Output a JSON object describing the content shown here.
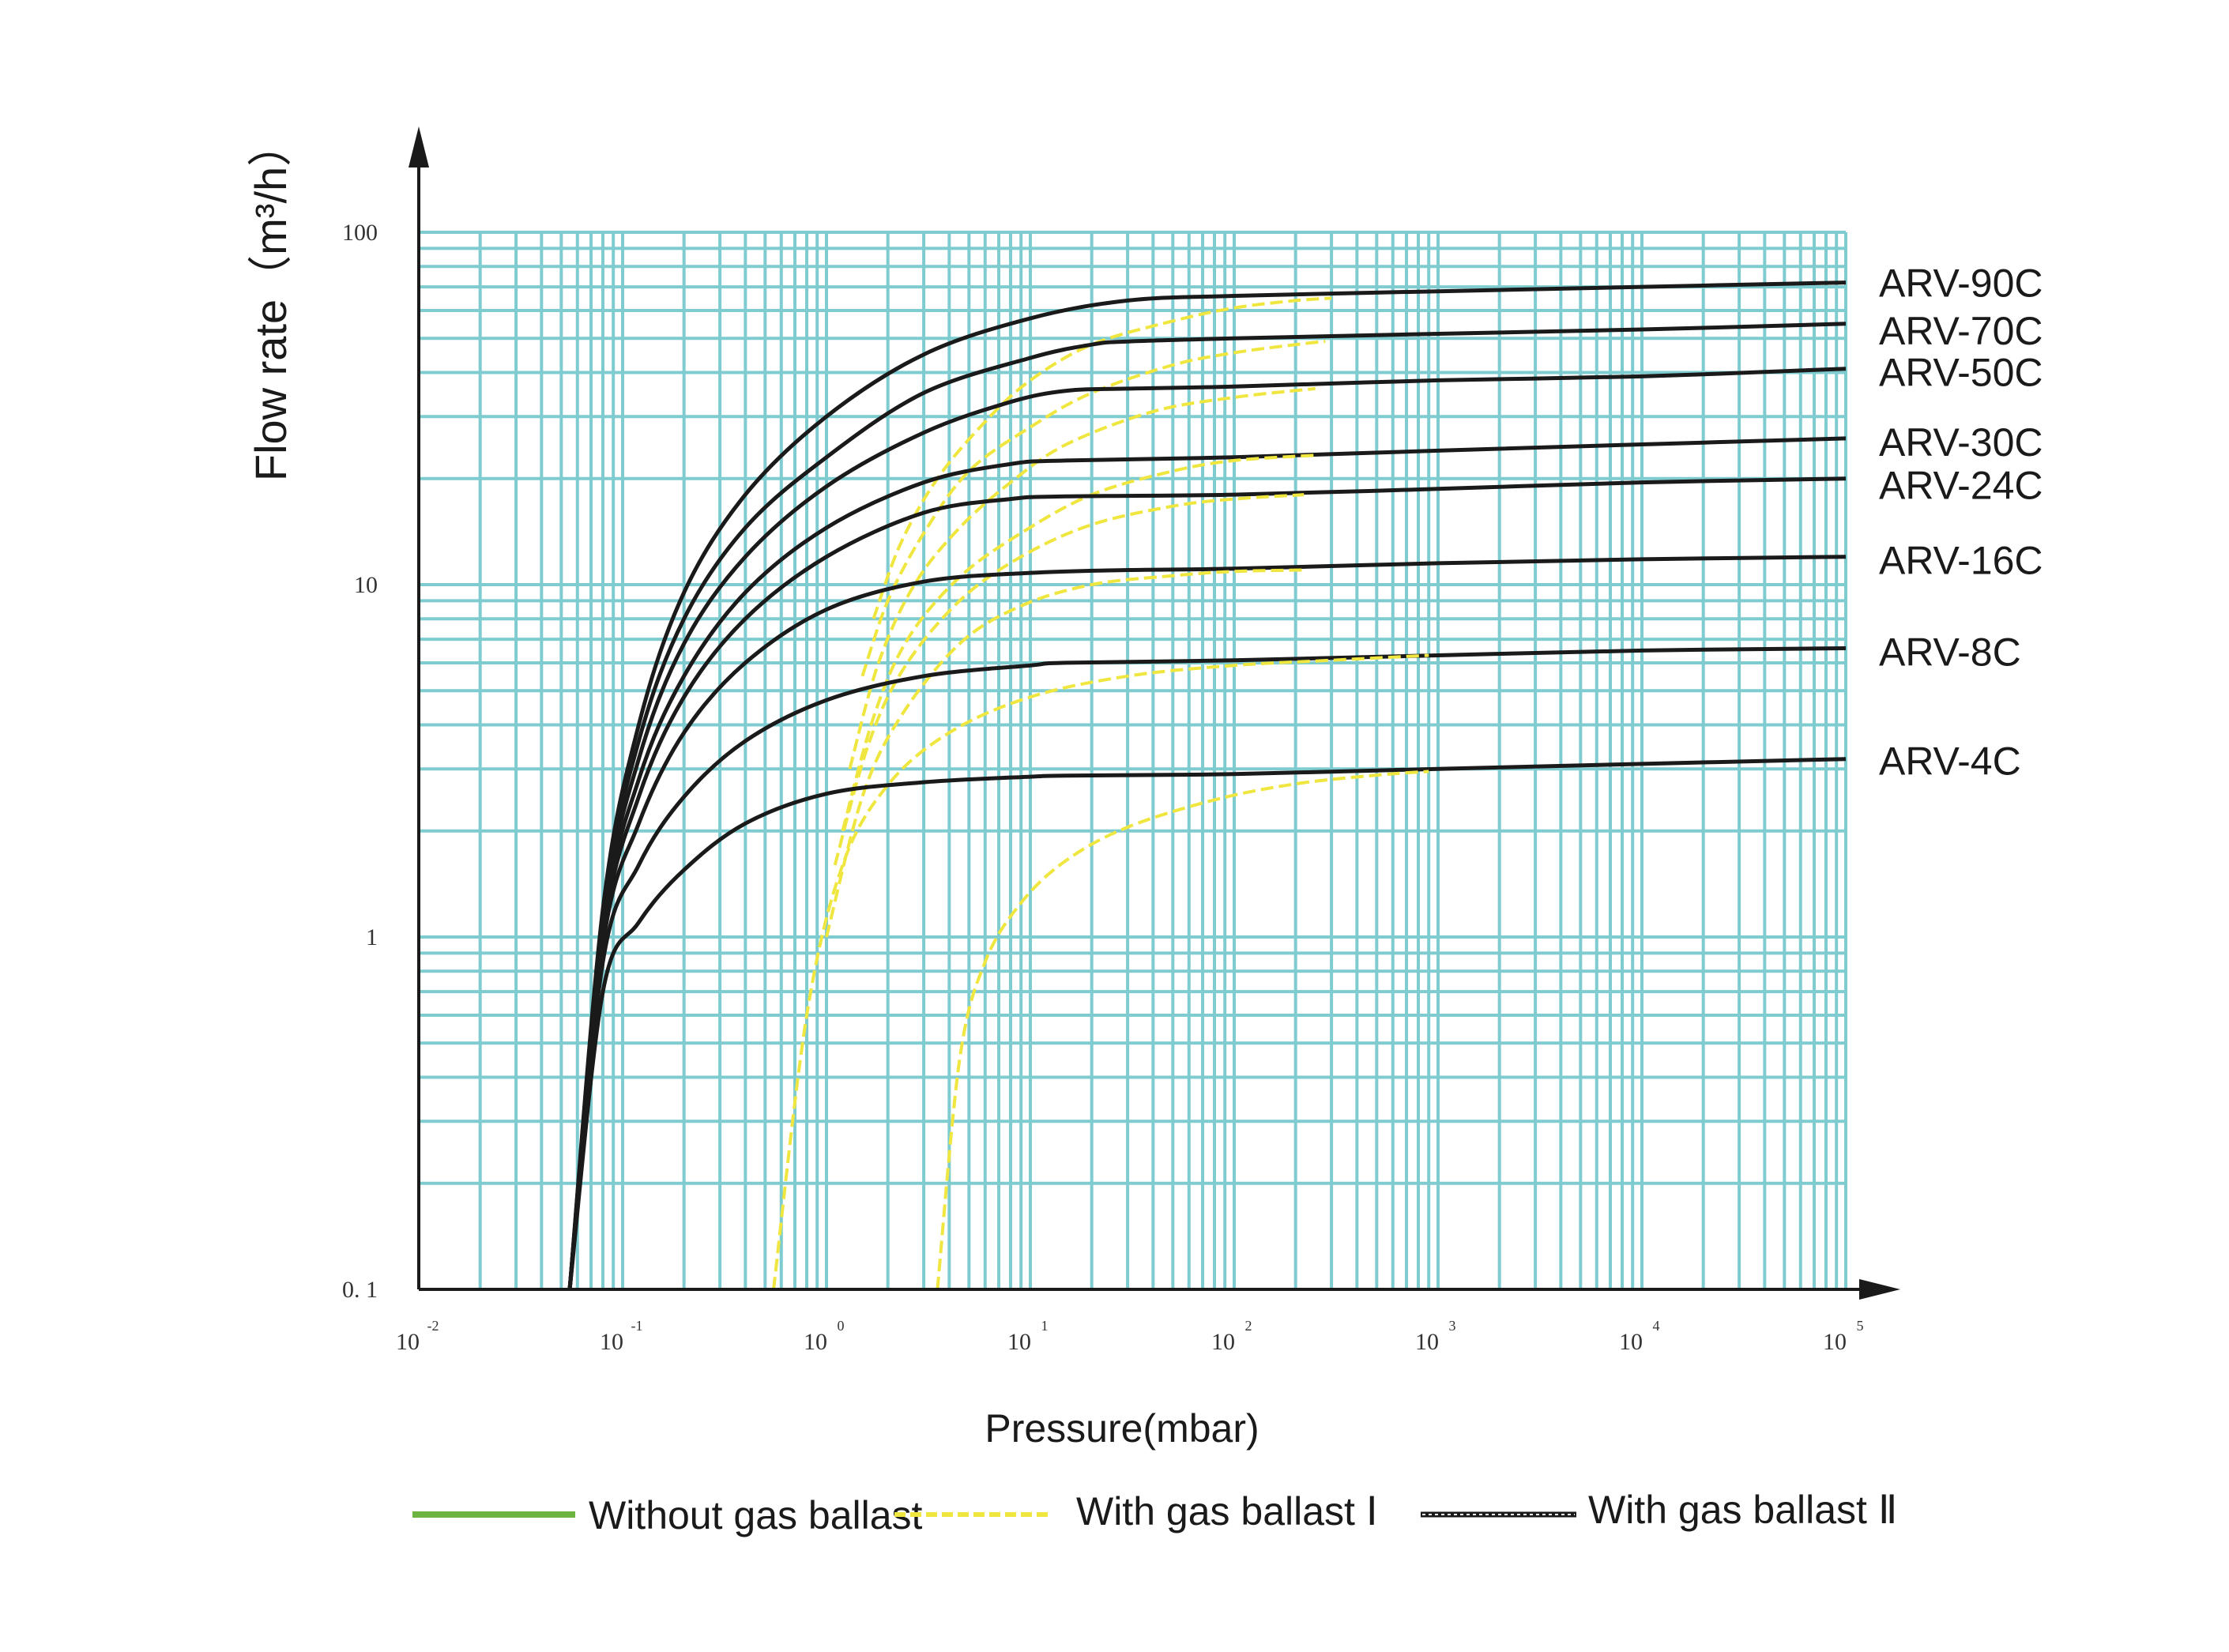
{
  "chart_data": {
    "type": "line",
    "x_scale": "log",
    "y_scale": "log",
    "xlim": [
      0.01,
      100000
    ],
    "ylim": [
      0.1,
      100
    ],
    "xlabel": "Pressure(mbar)",
    "ylabel": "Flow rate（m³/h）",
    "grid": true,
    "x_tick_labels": [
      {
        "base": "10",
        "exp": "-2",
        "value": 0.01
      },
      {
        "base": "10",
        "exp": "-1",
        "value": 0.1
      },
      {
        "base": "10",
        "exp": "0",
        "value": 1
      },
      {
        "base": "10",
        "exp": "1",
        "value": 10
      },
      {
        "base": "10",
        "exp": "2",
        "value": 100
      },
      {
        "base": "10",
        "exp": "3",
        "value": 1000
      },
      {
        "base": "10",
        "exp": "4",
        "value": 10000
      },
      {
        "base": "10",
        "exp": "5",
        "value": 100000
      }
    ],
    "y_tick_labels": [
      {
        "label": "0. 1",
        "value": 0.1
      },
      {
        "label": "1",
        "value": 1
      },
      {
        "label": "10",
        "value": 10
      },
      {
        "label": "100",
        "value": 100
      }
    ],
    "series": [
      {
        "name": "ARV-90C",
        "without_ballast": [
          [
            0.055,
            0.1
          ],
          [
            0.08,
            1.2
          ],
          [
            0.12,
            4
          ],
          [
            0.2,
            9.5
          ],
          [
            0.4,
            18
          ],
          [
            1,
            30
          ],
          [
            3,
            45
          ],
          [
            10,
            57
          ],
          [
            30,
            64
          ],
          [
            100,
            66
          ],
          [
            1000,
            68
          ],
          [
            10000,
            70
          ],
          [
            100000,
            72
          ]
        ],
        "with_ballast_I": [
          [
            1.7,
            8
          ],
          [
            2.3,
            13
          ],
          [
            3.5,
            20
          ],
          [
            6,
            29
          ],
          [
            10,
            38
          ],
          [
            20,
            48
          ],
          [
            50,
            56
          ],
          [
            100,
            61
          ],
          [
            200,
            64
          ],
          [
            300,
            65
          ]
        ]
      },
      {
        "name": "ARV-70C",
        "without_ballast": [
          [
            0.055,
            0.1
          ],
          [
            0.08,
            1.15
          ],
          [
            0.12,
            3.6
          ],
          [
            0.2,
            8
          ],
          [
            0.4,
            14.5
          ],
          [
            1,
            23
          ],
          [
            3,
            35
          ],
          [
            10,
            44
          ],
          [
            20,
            48
          ],
          [
            30,
            49
          ],
          [
            100,
            50
          ],
          [
            1000,
            51.5
          ],
          [
            10000,
            53
          ],
          [
            100000,
            55
          ]
        ],
        "with_ballast_I": [
          [
            1.5,
            5.5
          ],
          [
            2,
            9
          ],
          [
            3,
            14
          ],
          [
            5,
            21
          ],
          [
            10,
            28
          ],
          [
            20,
            35
          ],
          [
            50,
            42
          ],
          [
            100,
            45.5
          ],
          [
            200,
            48
          ],
          [
            280,
            49
          ]
        ]
      },
      {
        "name": "ARV-50C",
        "without_ballast": [
          [
            0.055,
            0.1
          ],
          [
            0.08,
            1.1
          ],
          [
            0.12,
            3.2
          ],
          [
            0.2,
            6.8
          ],
          [
            0.4,
            12
          ],
          [
            1,
            19
          ],
          [
            3,
            27
          ],
          [
            8,
            33
          ],
          [
            15,
            35.5
          ],
          [
            30,
            36
          ],
          [
            100,
            36.5
          ],
          [
            1000,
            38
          ],
          [
            10000,
            39
          ],
          [
            100000,
            41
          ]
        ],
        "with_ballast_I": [
          [
            1.3,
            3
          ],
          [
            1.8,
            6
          ],
          [
            2.7,
            10
          ],
          [
            4.5,
            14.5
          ],
          [
            8,
            19.5
          ],
          [
            15,
            25
          ],
          [
            40,
            31
          ],
          [
            100,
            34
          ],
          [
            250,
            36
          ]
        ]
      },
      {
        "name": "ARV-30C",
        "without_ballast": [
          [
            0.055,
            0.1
          ],
          [
            0.08,
            1.05
          ],
          [
            0.12,
            2.8
          ],
          [
            0.2,
            5.5
          ],
          [
            0.4,
            9.5
          ],
          [
            1,
            14.5
          ],
          [
            3,
            19.5
          ],
          [
            8,
            22
          ],
          [
            15,
            22.5
          ],
          [
            100,
            23
          ],
          [
            1000,
            24
          ],
          [
            10000,
            25
          ],
          [
            100000,
            26
          ]
        ],
        "with_ballast_I": [
          [
            1.2,
            2
          ],
          [
            1.7,
            4.2
          ],
          [
            2.5,
            7
          ],
          [
            4.5,
            10.5
          ],
          [
            9,
            14
          ],
          [
            20,
            18
          ],
          [
            50,
            21
          ],
          [
            100,
            22.5
          ],
          [
            250,
            23.3
          ]
        ]
      },
      {
        "name": "ARV-24C",
        "without_ballast": [
          [
            0.055,
            0.1
          ],
          [
            0.08,
            1
          ],
          [
            0.12,
            2.5
          ],
          [
            0.2,
            4.8
          ],
          [
            0.4,
            8
          ],
          [
            1,
            12
          ],
          [
            3,
            16
          ],
          [
            8,
            17.5
          ],
          [
            15,
            17.8
          ],
          [
            100,
            18
          ],
          [
            1000,
            18.7
          ],
          [
            10000,
            19.5
          ],
          [
            100000,
            20
          ]
        ],
        "with_ballast_I": [
          [
            1.1,
            1.6
          ],
          [
            1.6,
            3.5
          ],
          [
            2.4,
            5.8
          ],
          [
            4.5,
            9
          ],
          [
            9,
            12
          ],
          [
            20,
            14.8
          ],
          [
            50,
            16.7
          ],
          [
            100,
            17.5
          ],
          [
            220,
            18
          ]
        ]
      },
      {
        "name": "ARV-16C",
        "without_ballast": [
          [
            0.055,
            0.1
          ],
          [
            0.08,
            0.95
          ],
          [
            0.12,
            2.1
          ],
          [
            0.2,
            3.8
          ],
          [
            0.4,
            6
          ],
          [
            1,
            8.5
          ],
          [
            3,
            10.2
          ],
          [
            10,
            10.8
          ],
          [
            30,
            11
          ],
          [
            100,
            11.1
          ],
          [
            1000,
            11.5
          ],
          [
            10000,
            11.8
          ],
          [
            100000,
            12
          ]
        ],
        "with_ballast_I": [
          [
            1,
            1
          ],
          [
            1.5,
            2.5
          ],
          [
            2.3,
            4.2
          ],
          [
            4.5,
            6.8
          ],
          [
            9,
            8.7
          ],
          [
            20,
            10
          ],
          [
            50,
            10.6
          ],
          [
            100,
            10.9
          ],
          [
            220,
            11
          ]
        ]
      },
      {
        "name": "ARV-8C",
        "without_ballast": [
          [
            0.055,
            0.1
          ],
          [
            0.08,
            0.85
          ],
          [
            0.12,
            1.6
          ],
          [
            0.2,
            2.5
          ],
          [
            0.4,
            3.6
          ],
          [
            1,
            4.7
          ],
          [
            3,
            5.5
          ],
          [
            10,
            5.9
          ],
          [
            15,
            6
          ],
          [
            100,
            6.1
          ],
          [
            1000,
            6.3
          ],
          [
            10000,
            6.5
          ],
          [
            100000,
            6.6
          ]
        ],
        "with_ballast_I": [
          [
            0.55,
            0.1
          ],
          [
            0.8,
            0.6
          ],
          [
            1.2,
            1.6
          ],
          [
            2,
            2.7
          ],
          [
            4,
            3.8
          ],
          [
            10,
            4.8
          ],
          [
            30,
            5.5
          ],
          [
            100,
            5.9
          ],
          [
            300,
            6.1
          ],
          [
            900,
            6.3
          ]
        ]
      },
      {
        "name": "ARV-4C",
        "without_ballast": [
          [
            0.055,
            0.1
          ],
          [
            0.08,
            0.7
          ],
          [
            0.12,
            1.1
          ],
          [
            0.2,
            1.55
          ],
          [
            0.4,
            2.1
          ],
          [
            1,
            2.55
          ],
          [
            3,
            2.75
          ],
          [
            10,
            2.85
          ],
          [
            15,
            2.87
          ],
          [
            100,
            2.9
          ],
          [
            1000,
            3
          ],
          [
            10000,
            3.1
          ],
          [
            100000,
            3.2
          ]
        ],
        "with_ballast_I": [
          [
            3.5,
            0.1
          ],
          [
            4.5,
            0.45
          ],
          [
            6,
            0.85
          ],
          [
            9,
            1.25
          ],
          [
            15,
            1.65
          ],
          [
            30,
            2.05
          ],
          [
            80,
            2.45
          ],
          [
            200,
            2.72
          ],
          [
            500,
            2.88
          ],
          [
            900,
            2.95
          ]
        ]
      }
    ],
    "legend": {
      "placement": "bottom",
      "entries": [
        {
          "label": "Without gas ballast",
          "color": "#6db33f",
          "style": "solid"
        },
        {
          "label": "With gas ballast Ⅰ",
          "color": "#f0e640",
          "style": "dashed"
        },
        {
          "label": "With gas ballast Ⅱ",
          "color": "#1a1a1a",
          "style": "dotted"
        }
      ]
    },
    "colors": {
      "grid": "#7ecbd0",
      "curve_without": "#1a1a1a",
      "curve_ballast_I": "#f0e640",
      "axis": "#1a1a1a"
    }
  }
}
